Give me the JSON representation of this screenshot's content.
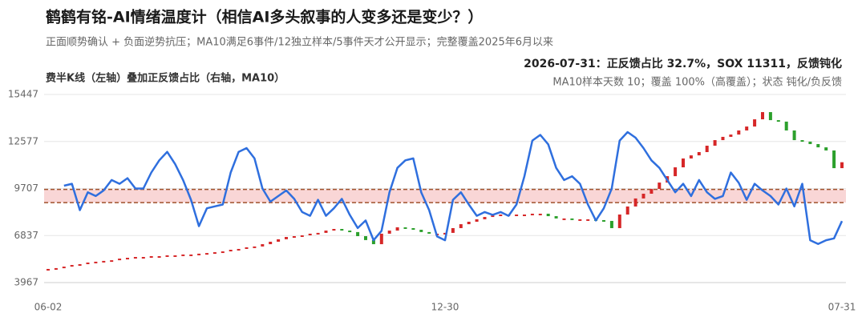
{
  "chart_data": {
    "type": "candle_line",
    "title": "鹤鹤有铭-AI情绪温度计（相信AI多头叙事的人变多还是变少？）",
    "subtitle": "正面顺势确认 + 负面逆势抗压；MA10满足6事件/12独立样本/5事件天才公开显示；完整覆盖2025年6月以来",
    "panel_label": "费半K线（左轴）叠加正反馈占比（右轴，MA10）",
    "annotations": [
      "2026-07-31：正反馈占比 32.7%，SOX 11311，反馈钝化",
      "MA10样本天数 10；覆盖 100%（高覆盖）；状态 钝化/负反馈"
    ],
    "categories": [
      "06-02",
      null,
      null,
      null,
      null,
      null,
      null,
      null,
      null,
      null,
      null,
      null,
      null,
      null,
      null,
      null,
      null,
      null,
      null,
      null,
      null,
      null,
      null,
      null,
      null,
      null,
      null,
      null,
      null,
      null,
      null,
      null,
      null,
      null,
      null,
      null,
      null,
      null,
      null,
      null,
      null,
      null,
      null,
      null,
      null,
      null,
      null,
      null,
      null,
      null,
      "12-30",
      null,
      null,
      null,
      null,
      null,
      null,
      null,
      null,
      null,
      null,
      null,
      null,
      null,
      null,
      null,
      null,
      null,
      null,
      null,
      null,
      null,
      null,
      null,
      null,
      null,
      null,
      null,
      null,
      null,
      null,
      null,
      null,
      null,
      null,
      null,
      null,
      null,
      null,
      null,
      null,
      null,
      null,
      null,
      null,
      null,
      null,
      null,
      null,
      null,
      "07-31"
    ],
    "series": [
      {
        "color_up": "#d62728",
        "color_down": "#2ca02c",
        "values": [
          4750,
          4850,
          4940,
          5040,
          5090,
          5190,
          5240,
          5290,
          5330,
          5430,
          5480,
          5530,
          5530,
          5580,
          5580,
          5630,
          5630,
          5680,
          5680,
          5730,
          5770,
          5820,
          5870,
          5970,
          6020,
          6120,
          6170,
          6310,
          6460,
          6610,
          6750,
          6800,
          6850,
          6950,
          7000,
          7140,
          7240,
          7140,
          7050,
          6800,
          6560,
          6310,
          6950,
          7140,
          7340,
          7290,
          7190,
          7050,
          6950,
          6950,
          7000,
          7290,
          7530,
          7680,
          7830,
          7970,
          8120,
          8120,
          8120,
          8120,
          8120,
          8170,
          8170,
          8020,
          7880,
          7880,
          7830,
          7830,
          7830,
          7780,
          7730,
          7290,
          8120,
          8610,
          9100,
          9390,
          9680,
          10070,
          10460,
          11000,
          11540,
          11730,
          11930,
          12320,
          12660,
          12860,
          13000,
          13250,
          13490,
          13930,
          14370,
          13880,
          13790,
          13250,
          12660,
          12570,
          12420,
          12220,
          12030,
          10950,
          11311
        ]
      },
      {
        "color": "#2f6fde",
        "axis": "y2",
        "values": [
          null,
          null,
          51.5,
          52.5,
          38.5,
          48,
          46,
          49,
          54.5,
          52.5,
          55.5,
          50,
          50,
          58.5,
          65,
          69.5,
          63,
          54.5,
          44,
          30,
          39.5,
          40.5,
          41.5,
          58.5,
          69.5,
          71.5,
          66,
          50,
          43,
          46,
          49,
          44.5,
          37.5,
          35.5,
          44,
          35.5,
          39.5,
          44.5,
          36,
          29,
          33,
          22.5,
          27.5,
          48,
          61,
          65,
          66,
          48,
          38.5,
          24.5,
          22.5,
          44,
          48,
          41.5,
          35.5,
          37.5,
          36,
          37.5,
          35.5,
          41.5,
          56.5,
          75.5,
          78.5,
          73.5,
          61,
          54.5,
          56.5,
          52.5,
          41.5,
          33,
          39.5,
          50,
          75.5,
          80,
          77,
          71.5,
          65,
          61,
          54.5,
          48,
          52.5,
          46,
          54.5,
          48,
          44.5,
          46,
          58.5,
          53,
          44,
          52.5,
          49,
          46,
          41.5,
          50,
          40.5,
          52.5,
          22.5,
          20.5,
          22.5,
          23.5,
          32.7
        ]
      }
    ],
    "ylim": [
      3967,
      15447
    ],
    "yticks": [
      3967,
      6837,
      9707,
      12577,
      15447
    ],
    "y2lim": [
      0,
      100
    ],
    "band": [
      42.5,
      49.5
    ],
    "band_color": "#f9d6d6",
    "band_line_color": "#a0522d",
    "grid": true
  }
}
